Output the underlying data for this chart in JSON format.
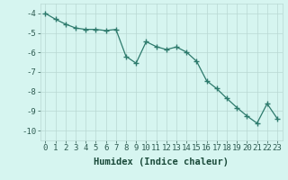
{
  "x": [
    0,
    1,
    2,
    3,
    4,
    5,
    6,
    7,
    8,
    9,
    10,
    11,
    12,
    13,
    14,
    15,
    16,
    17,
    18,
    19,
    20,
    21,
    22,
    23
  ],
  "y": [
    -4.0,
    -4.3,
    -4.55,
    -4.75,
    -4.82,
    -4.82,
    -4.88,
    -4.82,
    -6.2,
    -6.55,
    -5.45,
    -5.7,
    -5.85,
    -5.72,
    -5.98,
    -6.45,
    -7.45,
    -7.85,
    -8.35,
    -8.82,
    -9.25,
    -9.62,
    -8.62,
    -9.38
  ],
  "line_color": "#2d7a6c",
  "marker": "+",
  "markersize": 4,
  "linewidth": 0.9,
  "bg_color": "#d6f5f0",
  "grid_color": "#b8d8d2",
  "xlabel": "Humidex (Indice chaleur)",
  "ylim": [
    -10.5,
    -3.5
  ],
  "xlim": [
    -0.5,
    23.5
  ],
  "yticks": [
    -10,
    -9,
    -8,
    -7,
    -6,
    -5,
    -4
  ],
  "xticks": [
    0,
    1,
    2,
    3,
    4,
    5,
    6,
    7,
    8,
    9,
    10,
    11,
    12,
    13,
    14,
    15,
    16,
    17,
    18,
    19,
    20,
    21,
    22,
    23
  ],
  "xlabel_fontsize": 7.5,
  "tick_fontsize": 6.5,
  "tick_color": "#2d5a50",
  "label_color": "#1a4a3a"
}
